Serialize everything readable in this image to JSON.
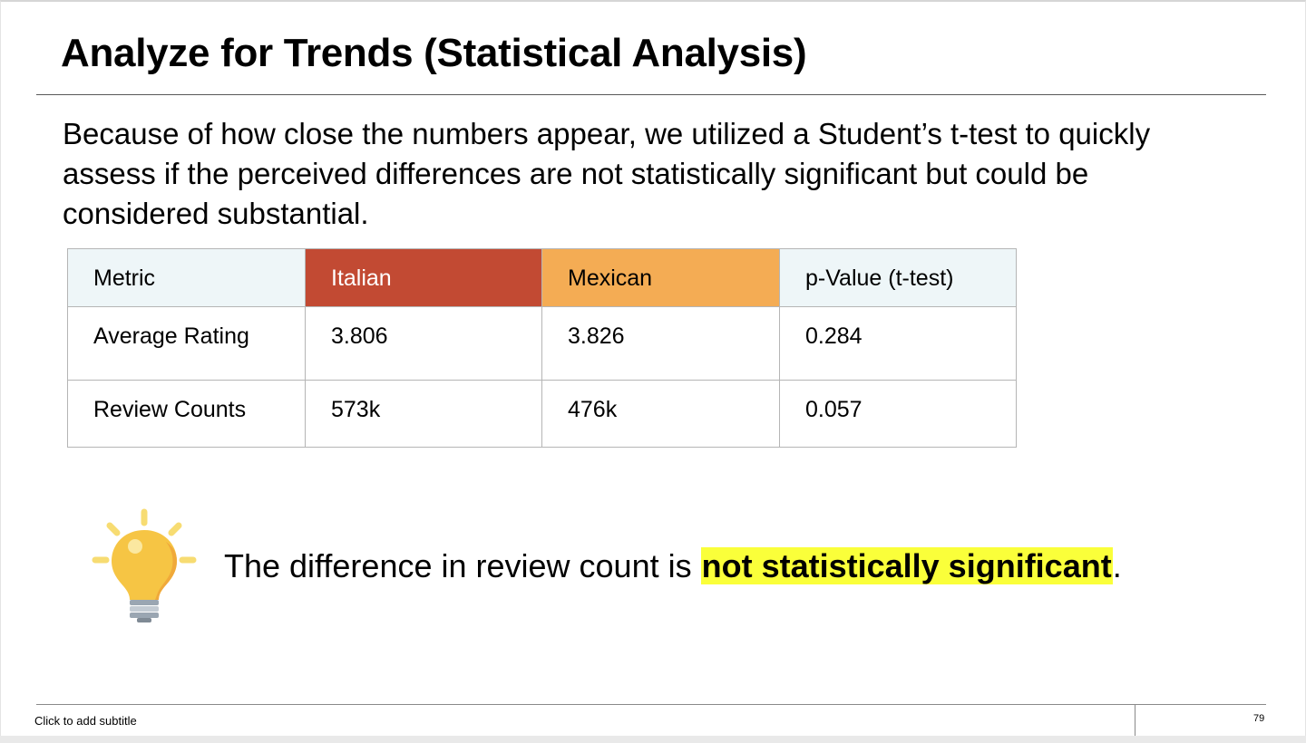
{
  "slide": {
    "title": "Analyze for Trends (Statistical Analysis)",
    "body": "Because of how close the numbers appear, we utilized a Student’s t-test to quickly assess if the perceived differences are not statistically significant but could be considered substantial.",
    "table": {
      "headers": [
        "Metric",
        "Italian",
        "Mexican",
        "p-Value (t-test)"
      ],
      "rows": [
        [
          "Average Rating",
          "3.806",
          "3.826",
          "0.284"
        ],
        [
          "Review Counts",
          "573k",
          "476k",
          "0.057"
        ]
      ],
      "header_colors": {
        "metric": "#eef6f8",
        "italian": "#c24a33",
        "mexican": "#f4ac54",
        "pvalue": "#eef6f8"
      }
    },
    "insight": {
      "prefix": "The difference in review count is ",
      "highlight": "not statistically significant",
      "suffix": ".",
      "highlight_color": "#faff3a",
      "icon": "lightbulb-icon"
    },
    "subtitle_placeholder": "Click to add subtitle",
    "page_number": "79"
  }
}
